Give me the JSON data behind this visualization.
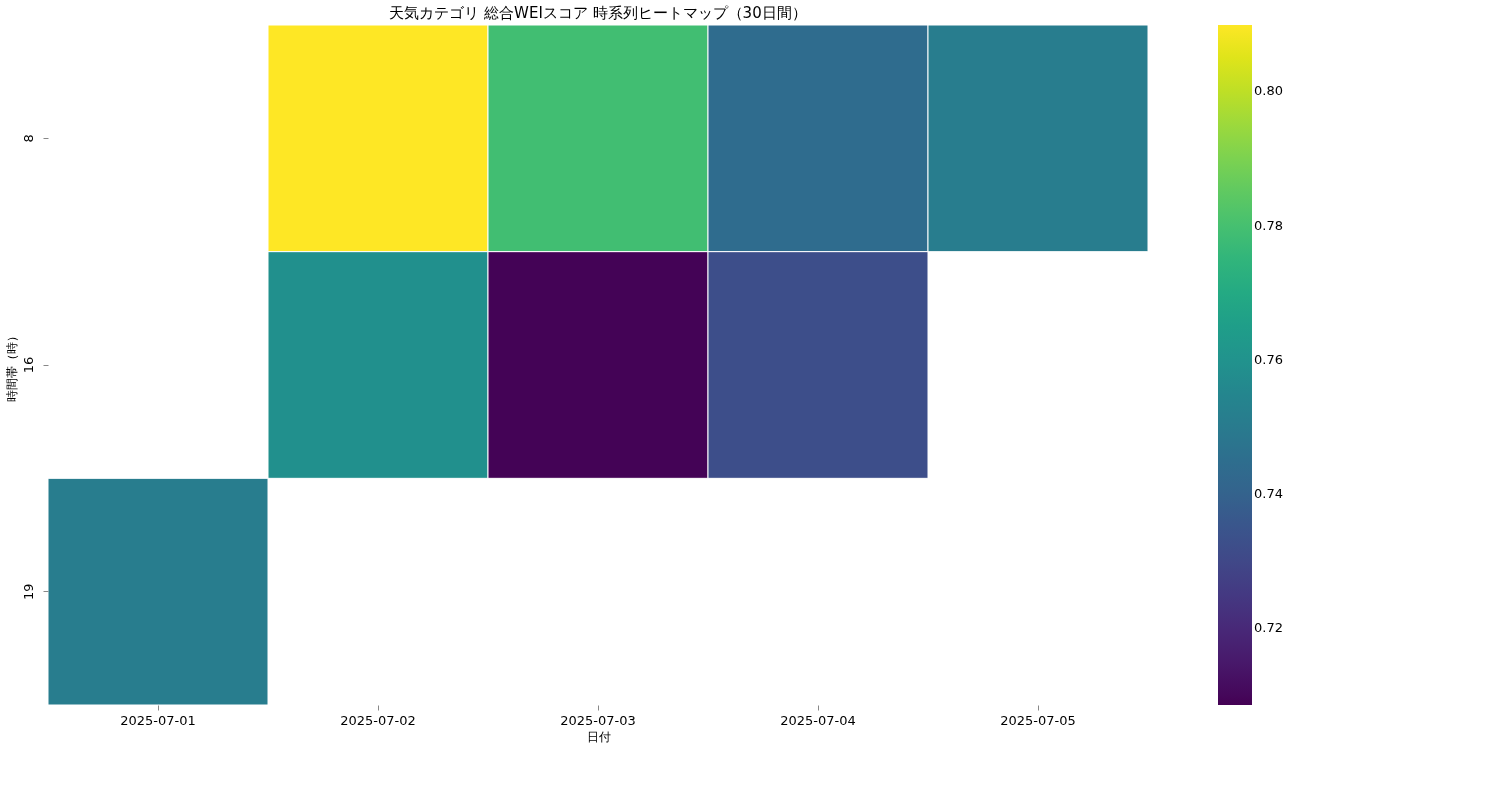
{
  "chart_data": {
    "type": "heatmap",
    "title": "天気カテゴリ 総合WEIスコア 時系列ヒートマップ（30日間）",
    "xlabel": "日付",
    "ylabel": "時間帯（時）",
    "categories": [
      "2025-07-01",
      "2025-07-02",
      "2025-07-03",
      "2025-07-04",
      "2025-07-05"
    ],
    "y_categories": [
      "8",
      "16",
      "19"
    ],
    "cells": [
      [
        null,
        0.81,
        0.779,
        0.744,
        0.751
      ],
      [
        null,
        0.759,
        0.709,
        0.732,
        null
      ],
      [
        0.751,
        null,
        null,
        null,
        null
      ]
    ],
    "clim": [
      0.7085,
      0.8099
    ],
    "cticks": [
      0.72,
      0.74,
      0.76,
      0.78,
      {
        "value": 0.8,
        "label": "0.80"
      }
    ]
  }
}
